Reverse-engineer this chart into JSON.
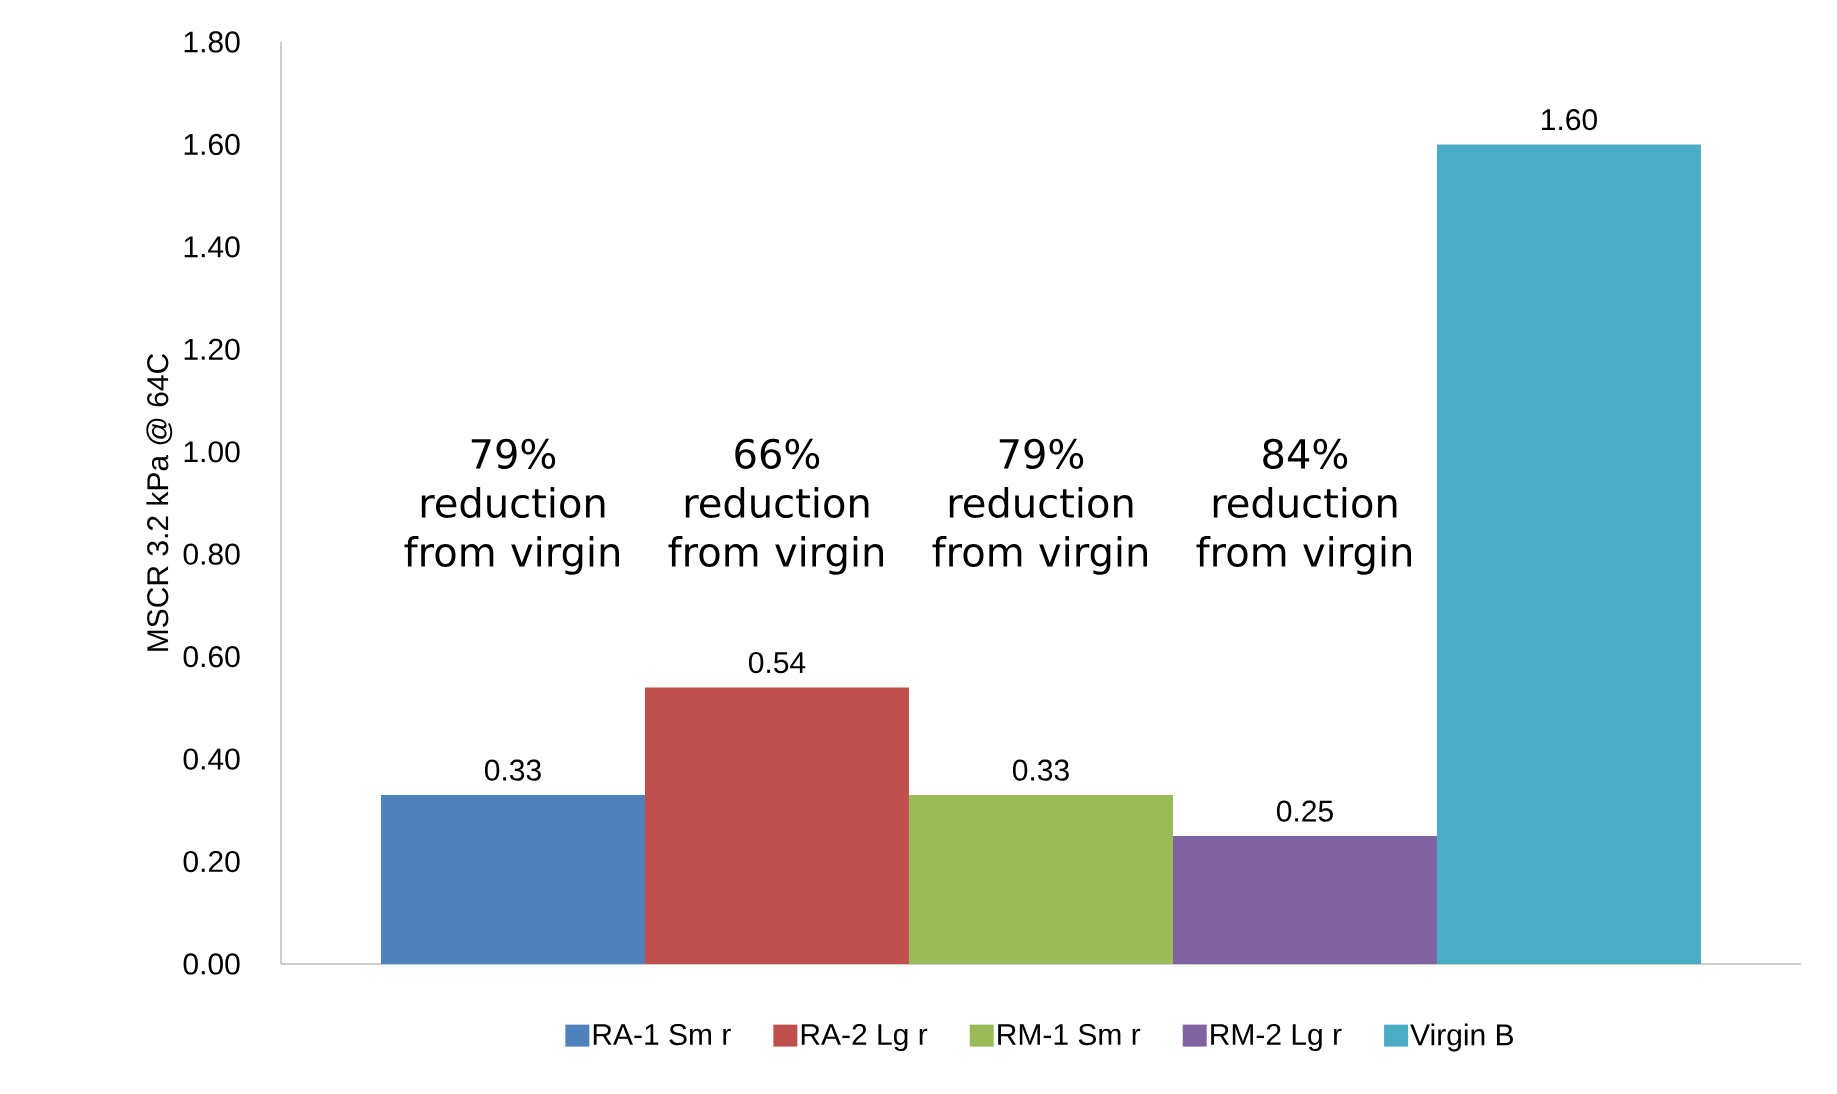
{
  "chart_data": {
    "type": "bar",
    "ylabel": "MSCR 3.2 kPa @ 64C",
    "categories": [
      null
    ],
    "series": [
      {
        "name": "RA-1 Sm r",
        "color": "#4f81bd",
        "values": [
          0.33
        ],
        "value_labels": [
          "0.33"
        ]
      },
      {
        "name": "RA-2 Lg r",
        "color": "#c0504d",
        "values": [
          0.54
        ],
        "value_labels": [
          "0.54"
        ]
      },
      {
        "name": "RM-1 Sm r",
        "color": "#9bbb59",
        "values": [
          0.33
        ],
        "value_labels": [
          "0.33"
        ]
      },
      {
        "name": "RM-2 Lg r",
        "color": "#8064a2",
        "values": [
          0.25
        ],
        "value_labels": [
          "0.25"
        ]
      },
      {
        "name": "Virgin B",
        "color": "#4bacc6",
        "values": [
          1.6
        ],
        "value_labels": [
          "1.60"
        ]
      }
    ],
    "annotations": [
      "79% reduction from virgin",
      "66% reduction from virgin",
      "79% reduction from virgin",
      "84% reduction from virgin"
    ],
    "ylim": [
      0,
      1.8
    ],
    "yticks": [
      {
        "value": 0,
        "label": "0.00"
      },
      {
        "value": 0.2,
        "label": "0.20"
      },
      {
        "value": 0.4,
        "label": "0.40"
      },
      {
        "value": 0.6,
        "label": "0.60"
      },
      {
        "value": 0.8,
        "label": "0.80"
      },
      {
        "value": 1.0,
        "label": "1.00"
      },
      {
        "value": 1.2,
        "label": "1.20"
      },
      {
        "value": 1.4,
        "label": "1.40"
      },
      {
        "value": 1.6,
        "label": "1.60"
      },
      {
        "value": 1.8,
        "label": "1.80"
      }
    ],
    "legend": "bottom",
    "grid": false
  }
}
